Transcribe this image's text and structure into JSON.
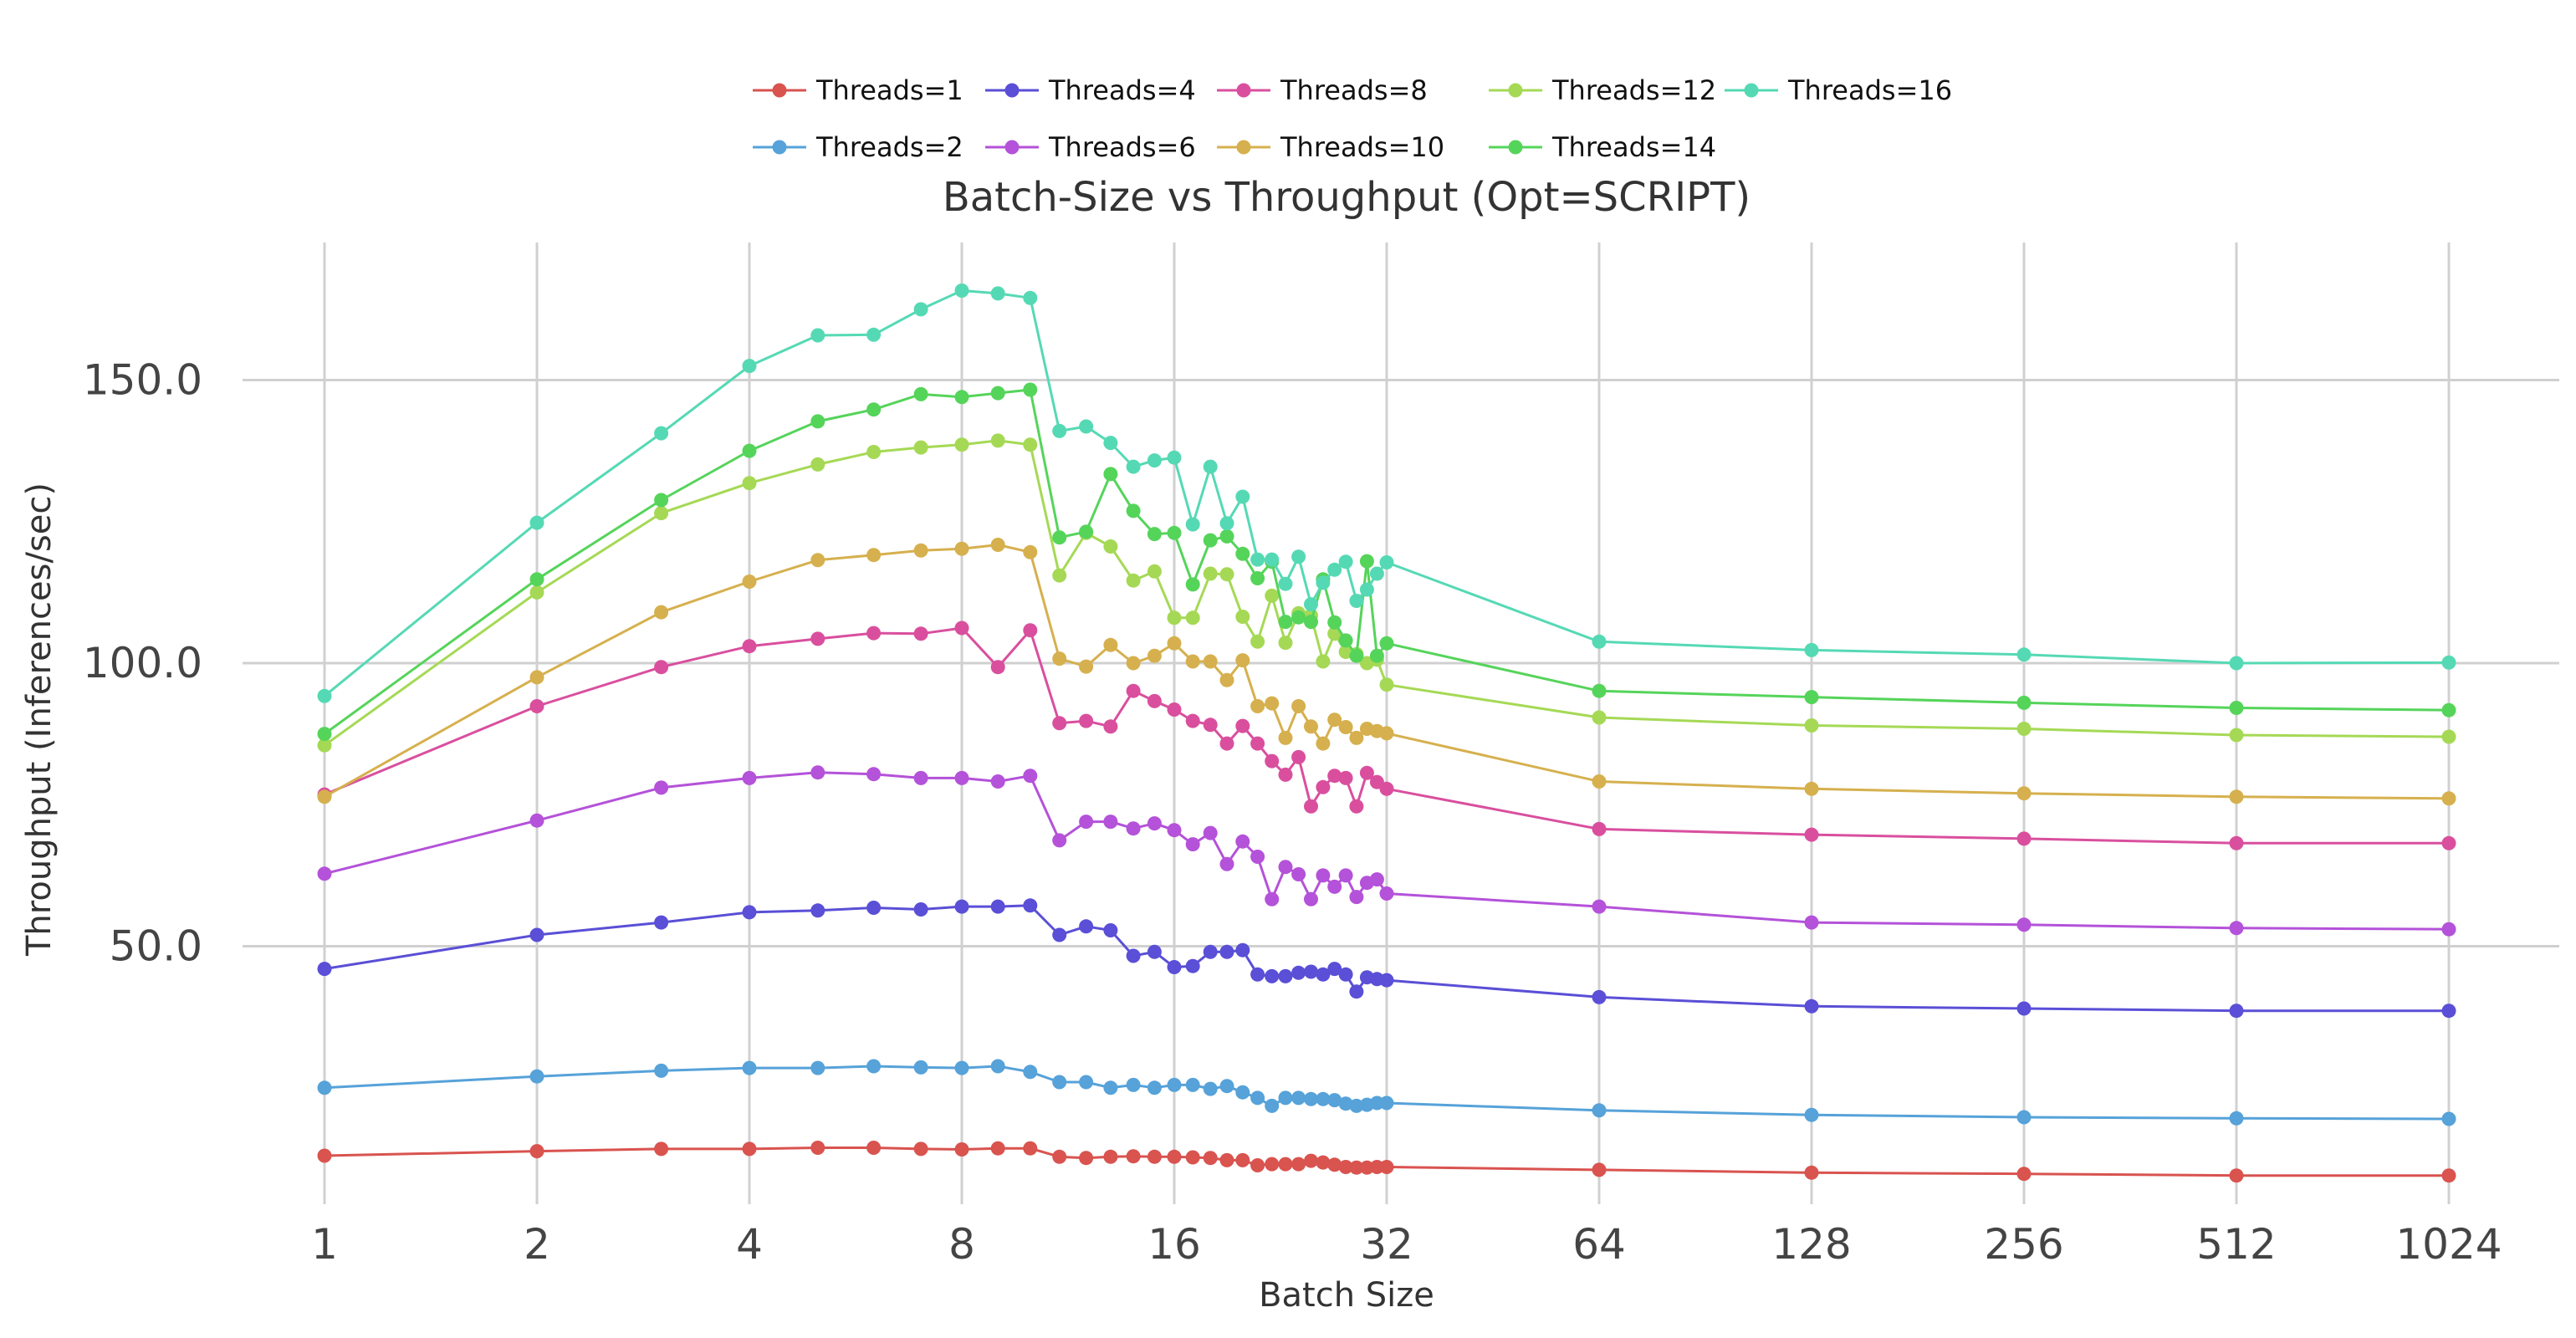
{
  "chart_data": {
    "type": "line",
    "title": "Batch-Size vs Throughput (Opt=SCRIPT)",
    "xlabel": "Batch Size",
    "ylabel": "Throughput (Inferences/sec)",
    "x_scale": "log2",
    "xlim": [
      1,
      1024
    ],
    "ylim": [
      0,
      175
    ],
    "x_ticks": [
      1,
      2,
      4,
      8,
      16,
      32,
      64,
      128,
      256,
      512,
      1024
    ],
    "x_tick_labels": [
      "1",
      "2",
      "4",
      "8",
      "16",
      "32",
      "64",
      "128",
      "256",
      "512",
      "1024"
    ],
    "y_ticks": [
      50,
      100,
      150
    ],
    "y_tick_labels": [
      "50.0",
      "100.0",
      "150.0"
    ],
    "grid": true,
    "legend_position": "top-center",
    "x": [
      1,
      2,
      3,
      4,
      5,
      6,
      7,
      8,
      9,
      10,
      11,
      12,
      13,
      14,
      15,
      16,
      17,
      18,
      19,
      20,
      21,
      22,
      23,
      24,
      25,
      26,
      27,
      28,
      29,
      30,
      31,
      32,
      64,
      128,
      256,
      512,
      1024
    ],
    "series": [
      {
        "name": "Threads=1",
        "color": "#d9534f",
        "values": [
          13.0,
          13.8,
          14.2,
          14.2,
          14.4,
          14.4,
          14.2,
          14.1,
          14.3,
          14.3,
          12.8,
          12.6,
          12.8,
          12.9,
          12.8,
          12.8,
          12.7,
          12.6,
          12.2,
          12.2,
          11.3,
          11.5,
          11.5,
          11.5,
          12.1,
          11.8,
          11.4,
          11.0,
          10.9,
          10.9,
          11.0,
          11.0,
          10.5,
          10.0,
          9.8,
          9.5,
          9.5
        ]
      },
      {
        "name": "Threads=2",
        "color": "#56a2d9",
        "values": [
          25.0,
          27.0,
          28.0,
          28.5,
          28.5,
          28.8,
          28.6,
          28.5,
          28.8,
          27.8,
          26.0,
          26.0,
          25.0,
          25.5,
          25.0,
          25.5,
          25.5,
          24.8,
          25.3,
          24.2,
          23.2,
          21.8,
          23.2,
          23.2,
          23.0,
          23.0,
          22.8,
          22.2,
          21.8,
          22.0,
          22.3,
          22.3,
          21.0,
          20.2,
          19.8,
          19.6,
          19.5
        ]
      },
      {
        "name": "Threads=4",
        "color": "#5a4fd6",
        "values": [
          46.0,
          52.0,
          54.2,
          56.0,
          56.3,
          56.8,
          56.5,
          57.0,
          57.0,
          57.2,
          52.0,
          53.5,
          52.8,
          48.3,
          49.0,
          46.3,
          46.5,
          49.0,
          49.0,
          49.3,
          45.0,
          44.7,
          44.7,
          45.3,
          45.5,
          45.0,
          46.0,
          45.0,
          42.0,
          44.5,
          44.2,
          44.0,
          41.0,
          39.4,
          39.0,
          38.6,
          38.6
        ]
      },
      {
        "name": "Threads=6",
        "color": "#b452d9",
        "values": [
          62.8,
          72.2,
          78.0,
          79.7,
          80.7,
          80.4,
          79.7,
          79.7,
          79.1,
          80.1,
          68.7,
          72.0,
          72.0,
          70.8,
          71.7,
          70.5,
          68.0,
          70.0,
          64.5,
          68.5,
          65.8,
          58.3,
          64.0,
          62.7,
          58.3,
          62.5,
          60.5,
          62.5,
          58.7,
          61.2,
          61.8,
          59.3,
          57.0,
          54.2,
          53.8,
          53.2,
          53.0
        ]
      },
      {
        "name": "Threads=8",
        "color": "#d94f9e",
        "values": [
          76.8,
          92.4,
          99.3,
          103.0,
          104.3,
          105.3,
          105.2,
          106.2,
          99.3,
          105.8,
          89.4,
          89.8,
          88.8,
          95.1,
          93.3,
          91.8,
          89.8,
          89.1,
          85.8,
          88.9,
          85.8,
          82.7,
          80.3,
          83.4,
          74.7,
          78.1,
          80.1,
          79.7,
          74.7,
          80.6,
          79.0,
          77.8,
          70.7,
          69.7,
          69.0,
          68.2,
          68.2
        ]
      },
      {
        "name": "Threads=10",
        "color": "#d6b04e",
        "values": [
          76.4,
          97.5,
          109.0,
          114.4,
          118.2,
          119.1,
          119.9,
          120.2,
          120.9,
          119.6,
          100.8,
          99.4,
          103.2,
          100.0,
          101.3,
          103.5,
          100.3,
          100.3,
          97.0,
          100.5,
          92.4,
          92.9,
          86.8,
          92.4,
          88.8,
          85.8,
          90.0,
          88.7,
          86.8,
          88.4,
          88.0,
          87.6,
          79.1,
          77.8,
          77.0,
          76.4,
          76.1
        ]
      },
      {
        "name": "Threads=12",
        "color": "#a5d955",
        "values": [
          85.5,
          112.5,
          126.5,
          131.8,
          135.1,
          137.3,
          138.1,
          138.6,
          139.3,
          138.6,
          115.5,
          123.0,
          120.6,
          114.6,
          116.2,
          108.0,
          108.0,
          115.8,
          115.7,
          108.2,
          103.8,
          111.9,
          103.6,
          108.8,
          108.4,
          100.3,
          105.2,
          102.0,
          101.6,
          100.0,
          100.6,
          96.2,
          90.4,
          89.0,
          88.4,
          87.3,
          87.0
        ]
      },
      {
        "name": "Threads=14",
        "color": "#55d45a",
        "values": [
          87.5,
          114.8,
          128.8,
          137.5,
          142.7,
          144.8,
          147.5,
          147.0,
          147.7,
          148.3,
          122.2,
          123.2,
          133.4,
          126.9,
          122.8,
          123.0,
          113.9,
          121.7,
          122.4,
          119.3,
          115.0,
          117.9,
          107.3,
          108.1,
          107.3,
          114.8,
          107.2,
          104.0,
          101.3,
          118.0,
          101.3,
          103.5,
          95.1,
          94.0,
          93.0,
          92.1,
          91.7
        ]
      },
      {
        "name": "Threads=16",
        "color": "#55d9b4",
        "values": [
          94.2,
          124.8,
          140.6,
          152.5,
          157.9,
          158.0,
          162.5,
          165.8,
          165.3,
          164.5,
          141.0,
          141.8,
          138.9,
          134.7,
          135.8,
          136.3,
          124.5,
          134.7,
          124.7,
          129.4,
          118.3,
          118.3,
          114.0,
          118.8,
          110.4,
          114.2,
          116.5,
          117.9,
          111.0,
          113.0,
          115.8,
          117.8,
          103.8,
          102.3,
          101.5,
          100.0,
          100.1
        ]
      }
    ]
  }
}
